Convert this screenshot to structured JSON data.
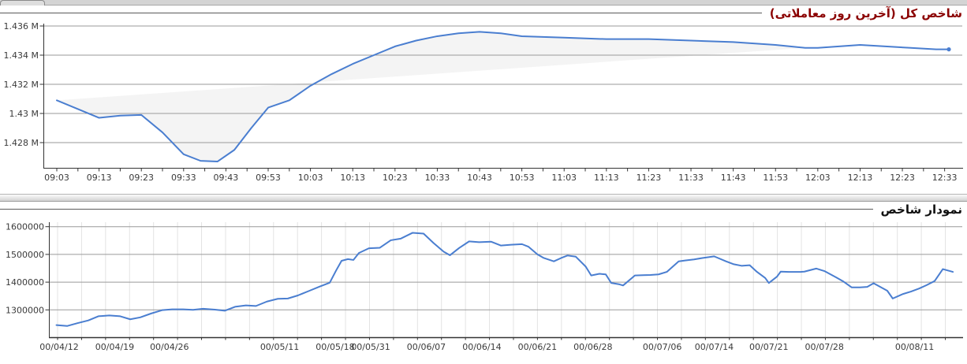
{
  "panels": [
    {
      "title": "شاخص کل (آخرین روز معاملاتی)",
      "title_color": "#8b0000"
    },
    {
      "title": "نمودار شاخص",
      "title_color": "#101010"
    }
  ],
  "colors": {
    "line": "#4a7ed0",
    "area_fill": "rgba(0,0,0,0.045)",
    "hgrid": "#9a9a9a",
    "vgrid": "#e3e3e3",
    "axis": "#333333",
    "label": "#3a3a3a"
  },
  "chart_data": [
    {
      "type": "line",
      "title": "شاخص کل (آخرین روز معاملاتی)",
      "xlabel": "",
      "ylabel": "",
      "x_unit": "minutes since 09:03",
      "x_tick_interval_minutes": 10,
      "x_tick_labels": [
        "09:03",
        "09:13",
        "09:23",
        "09:33",
        "09:43",
        "09:53",
        "10:03",
        "10:13",
        "10:23",
        "10:33",
        "10:43",
        "10:53",
        "11:03",
        "11:13",
        "11:23",
        "11:33",
        "11:43",
        "11:53",
        "12:03",
        "12:13",
        "12:23",
        "12:33"
      ],
      "y_tick_labels": [
        "1.436 M",
        "1.434 M",
        "1.432 M",
        "1.43 M",
        "1.428 M"
      ],
      "y_gridline_values": [
        1436000,
        1434000,
        1432000,
        1430000,
        1428000
      ],
      "ylim": [
        1426300,
        1436200
      ],
      "grid": "horizontal",
      "legend": false,
      "area_end_t": 177,
      "series": [
        {
          "name": "شاخص کل",
          "points": [
            [
              0,
              1430900
            ],
            [
              5,
              1430300
            ],
            [
              10,
              1429700
            ],
            [
              15,
              1429850
            ],
            [
              20,
              1429900
            ],
            [
              25,
              1428700
            ],
            [
              30,
              1427200
            ],
            [
              34,
              1426750
            ],
            [
              38,
              1426700
            ],
            [
              42,
              1427500
            ],
            [
              46,
              1429000
            ],
            [
              50,
              1430400
            ],
            [
              55,
              1430900
            ],
            [
              60,
              1431900
            ],
            [
              65,
              1432700
            ],
            [
              70,
              1433400
            ],
            [
              75,
              1434000
            ],
            [
              80,
              1434600
            ],
            [
              85,
              1435000
            ],
            [
              90,
              1435300
            ],
            [
              95,
              1435500
            ],
            [
              100,
              1435600
            ],
            [
              105,
              1435500
            ],
            [
              110,
              1435300
            ],
            [
              120,
              1435200
            ],
            [
              130,
              1435100
            ],
            [
              140,
              1435100
            ],
            [
              150,
              1435000
            ],
            [
              160,
              1434900
            ],
            [
              170,
              1434700
            ],
            [
              177,
              1434500
            ],
            [
              180,
              1434500
            ],
            [
              185,
              1434600
            ],
            [
              190,
              1434700
            ],
            [
              196,
              1434600
            ],
            [
              202,
              1434500
            ],
            [
              208,
              1434400
            ],
            [
              211,
              1434400
            ]
          ]
        }
      ]
    },
    {
      "type": "line",
      "title": "نمودار شاخص",
      "xlabel": "",
      "ylabel": "",
      "x_unit": "date (fraction of plot width, Persian calendar year 1400)",
      "x_ticks": [
        {
          "label": "00/04/12",
          "pos": 0.013
        },
        {
          "label": "00/04/19",
          "pos": 0.074
        },
        {
          "label": "00/04/26",
          "pos": 0.134
        },
        {
          "label": "00/05/11",
          "pos": 0.255
        },
        {
          "label": "00/05/18",
          "pos": 0.316
        },
        {
          "label": "00/05/31",
          "pos": 0.355
        },
        {
          "label": "00/06/07",
          "pos": 0.416
        },
        {
          "label": "00/06/14",
          "pos": 0.477
        },
        {
          "label": "00/06/21",
          "pos": 0.538
        },
        {
          "label": "00/06/28",
          "pos": 0.599
        },
        {
          "label": "00/07/06",
          "pos": 0.675
        },
        {
          "label": "00/07/14",
          "pos": 0.732
        },
        {
          "label": "00/07/21",
          "pos": 0.792
        },
        {
          "label": "00/07/28",
          "pos": 0.853
        },
        {
          "label": "00/08/11",
          "pos": 0.952
        }
      ],
      "y_tick_labels": [
        "1600000",
        "1500000",
        "1400000",
        "1300000"
      ],
      "y_gridline_values": [
        1600000,
        1500000,
        1400000,
        1300000
      ],
      "ylim": [
        1201000,
        1616000
      ],
      "grid": "both",
      "legend": false,
      "series": [
        {
          "name": "شاخص",
          "points": [
            [
              0.01,
              1245000
            ],
            [
              0.022,
              1242000
            ],
            [
              0.033,
              1252000
            ],
            [
              0.045,
              1262000
            ],
            [
              0.056,
              1277000
            ],
            [
              0.068,
              1280000
            ],
            [
              0.08,
              1277000
            ],
            [
              0.091,
              1266000
            ],
            [
              0.102,
              1273000
            ],
            [
              0.114,
              1287000
            ],
            [
              0.126,
              1299000
            ],
            [
              0.137,
              1302000
            ],
            [
              0.149,
              1302000
            ],
            [
              0.16,
              1300000
            ],
            [
              0.171,
              1304000
            ],
            [
              0.184,
              1301000
            ],
            [
              0.195,
              1297000
            ],
            [
              0.206,
              1311000
            ],
            [
              0.218,
              1316000
            ],
            [
              0.229,
              1314000
            ],
            [
              0.241,
              1330000
            ],
            [
              0.253,
              1340000
            ],
            [
              0.264,
              1341000
            ],
            [
              0.275,
              1352000
            ],
            [
              0.287,
              1368000
            ],
            [
              0.299,
              1384000
            ],
            [
              0.31,
              1398000
            ],
            [
              0.317,
              1442000
            ],
            [
              0.323,
              1477000
            ],
            [
              0.33,
              1483000
            ],
            [
              0.336,
              1480000
            ],
            [
              0.342,
              1505000
            ],
            [
              0.353,
              1522000
            ],
            [
              0.365,
              1524000
            ],
            [
              0.377,
              1551000
            ],
            [
              0.388,
              1557000
            ],
            [
              0.401,
              1578000
            ],
            [
              0.413,
              1575000
            ],
            [
              0.424,
              1541000
            ],
            [
              0.435,
              1510000
            ],
            [
              0.442,
              1497000
            ],
            [
              0.452,
              1523000
            ],
            [
              0.463,
              1547000
            ],
            [
              0.474,
              1544000
            ],
            [
              0.487,
              1546000
            ],
            [
              0.498,
              1532000
            ],
            [
              0.509,
              1535000
            ],
            [
              0.521,
              1537000
            ],
            [
              0.528,
              1528000
            ],
            [
              0.538,
              1500000
            ],
            [
              0.545,
              1487000
            ],
            [
              0.556,
              1475000
            ],
            [
              0.564,
              1487000
            ],
            [
              0.571,
              1496000
            ],
            [
              0.58,
              1492000
            ],
            [
              0.591,
              1456000
            ],
            [
              0.597,
              1424000
            ],
            [
              0.606,
              1430000
            ],
            [
              0.613,
              1428000
            ],
            [
              0.619,
              1397000
            ],
            [
              0.628,
              1392000
            ],
            [
              0.632,
              1388000
            ],
            [
              0.645,
              1424000
            ],
            [
              0.654,
              1425000
            ],
            [
              0.662,
              1426000
            ],
            [
              0.671,
              1428000
            ],
            [
              0.68,
              1437000
            ],
            [
              0.693,
              1475000
            ],
            [
              0.7,
              1478000
            ],
            [
              0.71,
              1482000
            ],
            [
              0.719,
              1487000
            ],
            [
              0.732,
              1493000
            ],
            [
              0.745,
              1475000
            ],
            [
              0.753,
              1465000
            ],
            [
              0.762,
              1459000
            ],
            [
              0.771,
              1461000
            ],
            [
              0.779,
              1437000
            ],
            [
              0.788,
              1415000
            ],
            [
              0.792,
              1397000
            ],
            [
              0.801,
              1420000
            ],
            [
              0.805,
              1438000
            ],
            [
              0.814,
              1437000
            ],
            [
              0.827,
              1437000
            ],
            [
              0.831,
              1438000
            ],
            [
              0.844,
              1449000
            ],
            [
              0.853,
              1440000
            ],
            [
              0.866,
              1417000
            ],
            [
              0.874,
              1402000
            ],
            [
              0.883,
              1381000
            ],
            [
              0.892,
              1381000
            ],
            [
              0.9,
              1383000
            ],
            [
              0.907,
              1396000
            ],
            [
              0.922,
              1369000
            ],
            [
              0.928,
              1341000
            ],
            [
              0.939,
              1357000
            ],
            [
              0.948,
              1366000
            ],
            [
              0.957,
              1377000
            ],
            [
              0.965,
              1389000
            ],
            [
              0.974,
              1404000
            ],
            [
              0.983,
              1447000
            ],
            [
              0.994,
              1437000
            ]
          ]
        }
      ]
    }
  ]
}
